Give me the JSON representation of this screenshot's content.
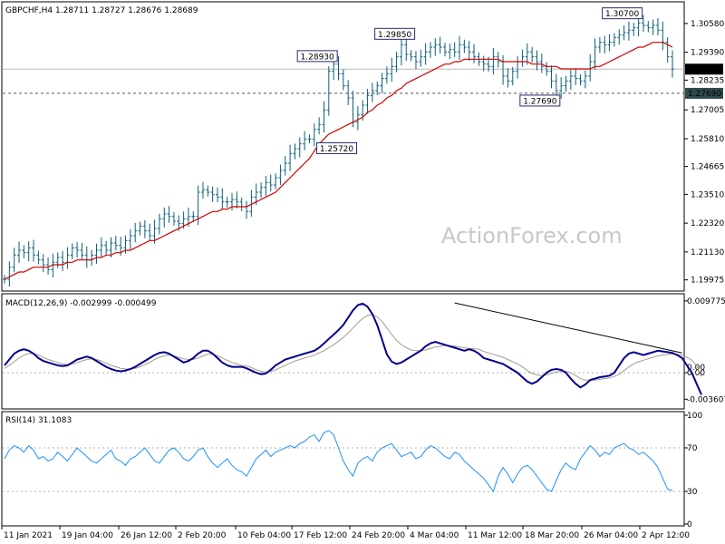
{
  "watermark": "ActionForex.com",
  "colors": {
    "candle": "#0b5f7a",
    "ma": "#d40000",
    "macd": "#00008b",
    "signal": "#a89a8a",
    "rsi": "#1e90ff",
    "trendline": "#000000",
    "current_label_bg": "#000000",
    "support_label_bg": "#2e4a4a"
  },
  "chart_data": [
    {
      "type": "candlestick",
      "title": "GBPCHF,H4  1.28711 1.28727 1.28676 1.28689",
      "ylim": [
        1.1955,
        1.314
      ],
      "yticks": [
        1.19975,
        1.2113,
        1.2232,
        1.2351,
        1.24665,
        1.2581,
        1.27005,
        1.28235,
        1.2939,
        1.3058
      ],
      "ytick_labels": [
        "1.19975",
        "1.21130",
        "1.22320",
        "1.23510",
        "1.24665",
        "1.25810",
        "1.27005",
        "1.28235",
        "1.29390",
        "1.30580"
      ],
      "current_price": "1.28689",
      "support_level": "1.27690",
      "annotations": [
        "1.28930",
        "1.29850",
        "1.30700",
        "1.25720",
        "1.27690"
      ],
      "xticks": [
        "11 Jan 2021",
        "19 Jan 04:00",
        "26 Jan 12:00",
        "2 Feb 20:00",
        "10 Feb 04:00",
        "17 Feb 12:00",
        "24 Feb 20:00",
        "4 Mar 04:00",
        "11 Mar 12:00",
        "18 Mar 20:00",
        "26 Mar 04:00",
        "2 Apr 12:00"
      ],
      "close_series": [
        1.2,
        1.205,
        1.21,
        1.212,
        1.211,
        1.213,
        1.21,
        1.208,
        1.206,
        1.204,
        1.207,
        1.209,
        1.207,
        1.21,
        1.213,
        1.212,
        1.21,
        1.208,
        1.21,
        1.212,
        1.214,
        1.212,
        1.215,
        1.214,
        1.213,
        1.216,
        1.218,
        1.22,
        1.222,
        1.22,
        1.218,
        1.221,
        1.225,
        1.227,
        1.226,
        1.224,
        1.223,
        1.225,
        1.226,
        1.226,
        1.236,
        1.237,
        1.236,
        1.235,
        1.234,
        1.232,
        1.232,
        1.233,
        1.232,
        1.23,
        1.228,
        1.234,
        1.236,
        1.238,
        1.24,
        1.239,
        1.242,
        1.245,
        1.248,
        1.252,
        1.254,
        1.256,
        1.258,
        1.258,
        1.262,
        1.264,
        1.27,
        1.286,
        1.289,
        1.285,
        1.28,
        1.275,
        1.265,
        1.268,
        1.272,
        1.276,
        1.278,
        1.28,
        1.283,
        1.285,
        1.288,
        1.292,
        1.297,
        1.293,
        1.292,
        1.29,
        1.292,
        1.294,
        1.296,
        1.297,
        1.296,
        1.294,
        1.295,
        1.294,
        1.297,
        1.296,
        1.294,
        1.292,
        1.29,
        1.289,
        1.288,
        1.292,
        1.29,
        1.284,
        1.282,
        1.286,
        1.29,
        1.292,
        1.294,
        1.292,
        1.29,
        1.288,
        1.286,
        1.282,
        1.278,
        1.28,
        1.282,
        1.284,
        1.283,
        1.282,
        1.284,
        1.29,
        1.296,
        1.298,
        1.297,
        1.298,
        1.3,
        1.301,
        1.302,
        1.303,
        1.304,
        1.306,
        1.305,
        1.304,
        1.305,
        1.303,
        1.298,
        1.292,
        1.287
      ],
      "ma_series": [
        1.2,
        1.201,
        1.202,
        1.203,
        1.203,
        1.204,
        1.205,
        1.205,
        1.205,
        1.205,
        1.206,
        1.206,
        1.206,
        1.207,
        1.207,
        1.208,
        1.208,
        1.208,
        1.208,
        1.209,
        1.209,
        1.21,
        1.21,
        1.211,
        1.211,
        1.212,
        1.212,
        1.213,
        1.214,
        1.215,
        1.216,
        1.216,
        1.217,
        1.218,
        1.219,
        1.22,
        1.221,
        1.222,
        1.223,
        1.224,
        1.225,
        1.226,
        1.227,
        1.228,
        1.228,
        1.229,
        1.229,
        1.23,
        1.23,
        1.23,
        1.23,
        1.231,
        1.232,
        1.233,
        1.234,
        1.235,
        1.236,
        1.238,
        1.24,
        1.242,
        1.244,
        1.246,
        1.248,
        1.25,
        1.253,
        1.256,
        1.258,
        1.26,
        1.261,
        1.262,
        1.263,
        1.264,
        1.265,
        1.266,
        1.267,
        1.269,
        1.27,
        1.272,
        1.273,
        1.275,
        1.276,
        1.278,
        1.279,
        1.281,
        1.282,
        1.283,
        1.284,
        1.285,
        1.286,
        1.287,
        1.288,
        1.289,
        1.289,
        1.29,
        1.29,
        1.291,
        1.291,
        1.291,
        1.291,
        1.291,
        1.291,
        1.291,
        1.291,
        1.29,
        1.29,
        1.29,
        1.29,
        1.29,
        1.29,
        1.289,
        1.289,
        1.289,
        1.288,
        1.288,
        1.288,
        1.287,
        1.287,
        1.287,
        1.287,
        1.287,
        1.287,
        1.287,
        1.288,
        1.288,
        1.289,
        1.29,
        1.291,
        1.292,
        1.293,
        1.294,
        1.295,
        1.296,
        1.296,
        1.297,
        1.298,
        1.298,
        1.298,
        1.297,
        1.296
      ]
    },
    {
      "type": "line",
      "title": "MACD(12,26,9) -0.002999 -0.000499",
      "ylim": [
        -0.0048,
        0.0105
      ],
      "yticks": [
        0.009775,
        0.0,
        -0.003607
      ],
      "ytick_labels": [
        "0.009775",
        "0.00",
        "-0.003607"
      ],
      "zero_label": "0.00",
      "trendline_from": [
        93,
        0.0095
      ],
      "trendline_to": [
        140,
        0.0027
      ],
      "series": [
        {
          "values": [
            0.001,
            0.0018,
            0.0026,
            0.003,
            0.0032,
            0.003,
            0.0026,
            0.002,
            0.0016,
            0.0014,
            0.0012,
            0.001,
            0.0009,
            0.001,
            0.0014,
            0.0018,
            0.002,
            0.0022,
            0.002,
            0.0016,
            0.0012,
            0.0008,
            0.0005,
            0.0003,
            0.0002,
            0.0003,
            0.0005,
            0.0008,
            0.0012,
            0.0016,
            0.002,
            0.0024,
            0.0027,
            0.0028,
            0.0026,
            0.0022,
            0.0018,
            0.0014,
            0.0016,
            0.002,
            0.0026,
            0.003,
            0.003,
            0.0026,
            0.002,
            0.0014,
            0.001,
            0.0008,
            0.0008,
            0.0008,
            0.0006,
            0.0003,
            0.0,
            -0.0002,
            -0.0001,
            0.0004,
            0.001,
            0.0014,
            0.0018,
            0.002,
            0.0022,
            0.0024,
            0.0026,
            0.0028,
            0.003,
            0.0034,
            0.004,
            0.0046,
            0.0052,
            0.0058,
            0.0065,
            0.0075,
            0.0085,
            0.0092,
            0.0094,
            0.009,
            0.008,
            0.0065,
            0.0045,
            0.0025,
            0.0015,
            0.0012,
            0.0014,
            0.0018,
            0.0022,
            0.0026,
            0.003,
            0.0036,
            0.004,
            0.0042,
            0.004,
            0.0038,
            0.0036,
            0.0034,
            0.0032,
            0.003,
            0.0032,
            0.003,
            0.0026,
            0.002,
            0.0018,
            0.0016,
            0.0014,
            0.0012,
            0.0008,
            0.0004,
            0.0,
            -0.0006,
            -0.0012,
            -0.0015,
            -0.0012,
            -0.0006,
            0.0,
            0.0004,
            0.0005,
            0.0004,
            0.0,
            -0.0008,
            -0.0015,
            -0.002,
            -0.0016,
            -0.001,
            -0.0008,
            -0.0006,
            -0.0005,
            -0.0004,
            0.0,
            0.001,
            0.002,
            0.0026,
            0.0028,
            0.0026,
            0.0024,
            0.0026,
            0.0028,
            0.003,
            0.0029,
            0.0028,
            0.0027,
            0.0024,
            0.002,
            0.001,
            0.0,
            -0.0015,
            -0.003
          ]
        },
        {
          "values": [
            0.0006,
            0.001,
            0.0015,
            0.002,
            0.0024,
            0.0026,
            0.0026,
            0.0024,
            0.0021,
            0.0018,
            0.0016,
            0.0014,
            0.0012,
            0.0011,
            0.0012,
            0.0014,
            0.0016,
            0.0018,
            0.0019,
            0.0018,
            0.0016,
            0.0013,
            0.001,
            0.0008,
            0.0006,
            0.0005,
            0.0005,
            0.0006,
            0.0008,
            0.0011,
            0.0014,
            0.0018,
            0.0021,
            0.0023,
            0.0024,
            0.0023,
            0.0021,
            0.0019,
            0.0018,
            0.0018,
            0.002,
            0.0023,
            0.0025,
            0.0025,
            0.0023,
            0.002,
            0.0017,
            0.0014,
            0.0012,
            0.001,
            0.0009,
            0.0007,
            0.0004,
            0.0002,
            0.0001,
            0.0002,
            0.0004,
            0.0007,
            0.001,
            0.0013,
            0.0016,
            0.0018,
            0.002,
            0.0022,
            0.0024,
            0.0027,
            0.003,
            0.0034,
            0.0038,
            0.0043,
            0.0048,
            0.0054,
            0.0061,
            0.0068,
            0.0074,
            0.0078,
            0.0079,
            0.0076,
            0.007,
            0.0061,
            0.0052,
            0.0044,
            0.0038,
            0.0034,
            0.0031,
            0.003,
            0.003,
            0.0031,
            0.0033,
            0.0035,
            0.0036,
            0.0037,
            0.0037,
            0.0036,
            0.0035,
            0.0034,
            0.0033,
            0.0033,
            0.0032,
            0.0029,
            0.0027,
            0.0025,
            0.0023,
            0.0021,
            0.0018,
            0.0015,
            0.0012,
            0.0008,
            0.0003,
            -0.0001,
            -0.0003,
            -0.0004,
            -0.0003,
            -0.0001,
            0.0001,
            0.0002,
            0.0002,
            0.0,
            -0.0004,
            -0.0008,
            -0.001,
            -0.001,
            -0.001,
            -0.0009,
            -0.0008,
            -0.0007,
            -0.0005,
            -0.0002,
            0.0003,
            0.0008,
            0.0012,
            0.0015,
            0.0017,
            0.0019,
            0.0021,
            0.0023,
            0.0024,
            0.0025,
            0.0025,
            0.0025,
            0.0024,
            0.0021,
            0.0017,
            0.001,
            -0.0005
          ]
        }
      ]
    },
    {
      "type": "line",
      "title": "RSI(14) 31.1083",
      "ylim": [
        0,
        100
      ],
      "yticks": [
        100,
        70,
        30,
        0
      ],
      "ytick_labels": [
        "100",
        "70",
        "30",
        "0"
      ],
      "levels": [
        70,
        30
      ],
      "series": [
        {
          "values": [
            60,
            68,
            72,
            70,
            66,
            72,
            68,
            60,
            62,
            58,
            60,
            66,
            62,
            58,
            64,
            70,
            66,
            62,
            58,
            56,
            60,
            64,
            68,
            60,
            58,
            54,
            60,
            62,
            66,
            70,
            64,
            58,
            56,
            62,
            68,
            70,
            66,
            60,
            58,
            62,
            68,
            70,
            62,
            56,
            52,
            56,
            60,
            54,
            50,
            48,
            44,
            52,
            60,
            64,
            68,
            62,
            66,
            68,
            70,
            72,
            70,
            74,
            76,
            80,
            82,
            76,
            84,
            86,
            82,
            70,
            58,
            50,
            44,
            56,
            60,
            62,
            58,
            66,
            70,
            72,
            74,
            68,
            62,
            64,
            66,
            60,
            62,
            68,
            72,
            70,
            66,
            62,
            60,
            66,
            64,
            58,
            54,
            50,
            46,
            42,
            36,
            30,
            44,
            52,
            46,
            38,
            46,
            52,
            54,
            50,
            44,
            38,
            32,
            30,
            40,
            50,
            56,
            52,
            50,
            60,
            66,
            72,
            68,
            62,
            66,
            64,
            70,
            72,
            74,
            70,
            68,
            64,
            66,
            62,
            58,
            52,
            42,
            32,
            31
          ]
        }
      ]
    }
  ]
}
